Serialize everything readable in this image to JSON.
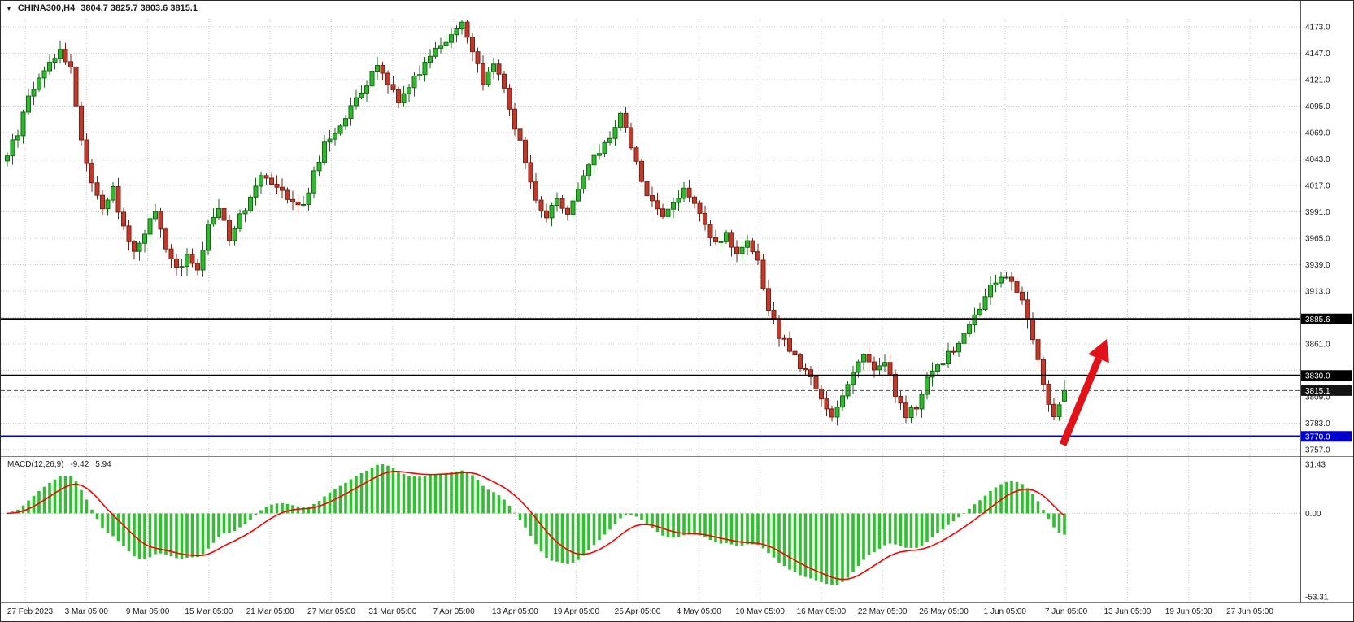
{
  "window": {
    "bg": "#ffffff",
    "border_color": "#2b2b2b"
  },
  "title": {
    "dropdown_icon": "▼",
    "symbol": "CHINA300,H4",
    "ohlc_text": "3804.7 3825.7 3803.6 3815.1"
  },
  "price_axis": {
    "text_color": "#1b1b1b",
    "labels": [
      {
        "text": "4173.0",
        "price": 4173.0
      },
      {
        "text": "4147.0",
        "price": 4147.0
      },
      {
        "text": "4121.0",
        "price": 4121.0
      },
      {
        "text": "4095.0",
        "price": 4095.0
      },
      {
        "text": "4069.0",
        "price": 4069.0
      },
      {
        "text": "4043.0",
        "price": 4043.0
      },
      {
        "text": "4017.0",
        "price": 4017.0
      },
      {
        "text": "3991.0",
        "price": 3991.0
      },
      {
        "text": "3965.0",
        "price": 3965.0
      },
      {
        "text": "3939.0",
        "price": 3939.0
      },
      {
        "text": "3913.0",
        "price": 3913.0
      },
      {
        "text": "3861.0",
        "price": 3861.0
      },
      {
        "text": "3809.0",
        "price": 3809.0
      },
      {
        "text": "3783.0",
        "price": 3783.0
      },
      {
        "text": "3757.0",
        "price": 3757.0
      }
    ],
    "badges": [
      {
        "text": "3885.6",
        "price": 3885.6,
        "bg": "#000000",
        "fg": "#ffffff"
      },
      {
        "text": "3830.0",
        "price": 3830.0,
        "bg": "#000000",
        "fg": "#ffffff"
      },
      {
        "text": "3815.1",
        "price": 3815.1,
        "bg": "#141414",
        "fg": "#ffffff"
      },
      {
        "text": "3770.0",
        "price": 3770.0,
        "bg": "#0000cc",
        "fg": "#ffffff"
      }
    ]
  },
  "level_lines": [
    {
      "price": 3885.6,
      "color": "#000000",
      "width": 2,
      "style": "solid"
    },
    {
      "price": 3830.0,
      "color": "#000000",
      "width": 2,
      "style": "solid"
    },
    {
      "price": 3815.1,
      "color": "#4d4d4d",
      "width": 1,
      "style": "dashed"
    },
    {
      "price": 3770.0,
      "color": "#0000cc",
      "width": 2.5,
      "style": "solid"
    }
  ],
  "time_axis": {
    "text_color": "#1b1b1b",
    "labels": [
      "27 Feb 2023",
      "3 Mar 05:00",
      "9 Mar 05:00",
      "15 Mar 05:00",
      "21 Mar 05:00",
      "27 Mar 05:00",
      "31 Mar 05:00",
      "7 Apr 05:00",
      "13 Apr 05:00",
      "19 Apr 05:00",
      "25 Apr 05:00",
      "4 May 05:00",
      "10 May 05:00",
      "16 May 05:00",
      "22 May 05:00",
      "26 May 05:00",
      "1 Jun 05:00",
      "7 Jun 05:00",
      "13 Jun 05:00",
      "19 Jun 05:00",
      "27 Jun 05:00"
    ]
  },
  "macd": {
    "label": "MACD(12,26,9)",
    "main_value": "-9.42",
    "signal_value": "5.94",
    "axis_labels": [
      {
        "text": "31.43",
        "value": 31.43
      },
      {
        "text": "0.00",
        "value": 0
      },
      {
        "text": "-53.31",
        "value": -53.31
      }
    ],
    "histogram_color": "#2fbf2f",
    "signal_color": "#ff0000"
  },
  "grid": {
    "color": "#c9c9c9"
  },
  "arrow": {
    "shape": "up-right-arrow",
    "color": "#e31219"
  },
  "chart_data": {
    "type": "candlestick",
    "symbol": "CHINA300",
    "timeframe": "H4",
    "current_bar": {
      "open": 3804.7,
      "high": 3825.7,
      "low": 3803.6,
      "close": 3815.1
    },
    "price_axis_range": {
      "min": 3757,
      "max": 4173,
      "grid_step": 26
    },
    "candle_count": 201,
    "up_color": "#2eb82e",
    "up_border": "#156915",
    "down_color": "#c0392b",
    "down_border": "#7c2015",
    "anchor_closes": [
      [
        0,
        4048
      ],
      [
        2,
        4068
      ],
      [
        4,
        4105
      ],
      [
        6,
        4122
      ],
      [
        8,
        4138
      ],
      [
        10,
        4150
      ],
      [
        12,
        4132
      ],
      [
        14,
        4062
      ],
      [
        16,
        4020
      ],
      [
        18,
        3996
      ],
      [
        20,
        4012
      ],
      [
        22,
        3976
      ],
      [
        24,
        3950
      ],
      [
        26,
        3972
      ],
      [
        28,
        3992
      ],
      [
        30,
        3952
      ],
      [
        32,
        3936
      ],
      [
        34,
        3946
      ],
      [
        36,
        3930
      ],
      [
        38,
        3980
      ],
      [
        40,
        3996
      ],
      [
        42,
        3966
      ],
      [
        44,
        3986
      ],
      [
        46,
        4006
      ],
      [
        48,
        4030
      ],
      [
        50,
        4022
      ],
      [
        52,
        4014
      ],
      [
        54,
        4000
      ],
      [
        56,
        3996
      ],
      [
        58,
        4030
      ],
      [
        60,
        4056
      ],
      [
        62,
        4070
      ],
      [
        64,
        4086
      ],
      [
        66,
        4100
      ],
      [
        68,
        4116
      ],
      [
        70,
        4136
      ],
      [
        72,
        4120
      ],
      [
        74,
        4100
      ],
      [
        76,
        4116
      ],
      [
        78,
        4130
      ],
      [
        80,
        4146
      ],
      [
        82,
        4156
      ],
      [
        84,
        4166
      ],
      [
        86,
        4176
      ],
      [
        88,
        4146
      ],
      [
        90,
        4120
      ],
      [
        92,
        4136
      ],
      [
        94,
        4114
      ],
      [
        96,
        4076
      ],
      [
        98,
        4040
      ],
      [
        100,
        4002
      ],
      [
        102,
        3986
      ],
      [
        104,
        4006
      ],
      [
        106,
        3990
      ],
      [
        108,
        4012
      ],
      [
        110,
        4036
      ],
      [
        112,
        4050
      ],
      [
        114,
        4066
      ],
      [
        116,
        4086
      ],
      [
        118,
        4056
      ],
      [
        120,
        4020
      ],
      [
        122,
        4000
      ],
      [
        124,
        3986
      ],
      [
        126,
        4000
      ],
      [
        128,
        4016
      ],
      [
        130,
        3996
      ],
      [
        132,
        3976
      ],
      [
        134,
        3960
      ],
      [
        136,
        3970
      ],
      [
        138,
        3946
      ],
      [
        140,
        3960
      ],
      [
        142,
        3940
      ],
      [
        144,
        3892
      ],
      [
        146,
        3870
      ],
      [
        148,
        3856
      ],
      [
        150,
        3840
      ],
      [
        152,
        3826
      ],
      [
        154,
        3806
      ],
      [
        156,
        3790
      ],
      [
        158,
        3810
      ],
      [
        160,
        3836
      ],
      [
        162,
        3850
      ],
      [
        164,
        3836
      ],
      [
        166,
        3846
      ],
      [
        168,
        3810
      ],
      [
        170,
        3790
      ],
      [
        172,
        3800
      ],
      [
        174,
        3826
      ],
      [
        176,
        3840
      ],
      [
        178,
        3850
      ],
      [
        180,
        3862
      ],
      [
        182,
        3880
      ],
      [
        184,
        3896
      ],
      [
        186,
        3916
      ],
      [
        188,
        3930
      ],
      [
        190,
        3920
      ],
      [
        192,
        3904
      ],
      [
        194,
        3868
      ],
      [
        196,
        3820
      ],
      [
        198,
        3790
      ],
      [
        200,
        3815.1
      ]
    ],
    "indicator": {
      "name": "MACD",
      "fast": 12,
      "slow": 26,
      "signal": 9,
      "display_range": [
        -53.31,
        31.43
      ]
    }
  }
}
